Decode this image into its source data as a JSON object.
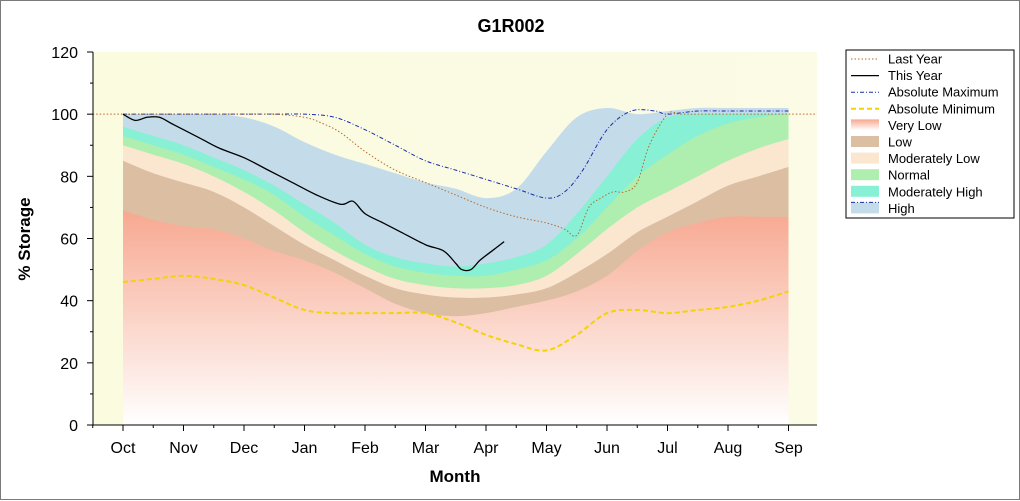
{
  "chart_data": {
    "type": "area",
    "title": "G1R002",
    "xlabel": "Month",
    "ylabel": "% Storage",
    "ylim": [
      0,
      120
    ],
    "yticks": [
      0,
      20,
      40,
      60,
      80,
      100,
      120
    ],
    "xlim": [
      0,
      11.5
    ],
    "categories": [
      "Oct",
      "Nov",
      "Dec",
      "Jan",
      "Feb",
      "Mar",
      "Apr",
      "May",
      "Jun",
      "Jul",
      "Aug",
      "Sep"
    ],
    "grid": false,
    "legend_position": "right",
    "band_x": [
      0,
      0.5,
      1,
      1.5,
      2,
      2.5,
      3,
      3.5,
      4,
      4.5,
      5,
      5.5,
      6,
      6.5,
      7,
      7.5,
      8,
      8.5,
      9,
      9.5,
      10,
      10.5,
      11
    ],
    "bands": [
      {
        "name": "Very Low",
        "color": "#f7a890",
        "upper": [
          69,
          66,
          64,
          63,
          60,
          56,
          53,
          49,
          44,
          39,
          36,
          35,
          36,
          38,
          40,
          43,
          48,
          56,
          62,
          65,
          67,
          67,
          67
        ]
      },
      {
        "name": "Low",
        "color": "#dcbea3",
        "upper": [
          85,
          81,
          78,
          75,
          70,
          64,
          58,
          53,
          48,
          44,
          42,
          41,
          41,
          42,
          44,
          49,
          55,
          62,
          67,
          72,
          77,
          80,
          83
        ]
      },
      {
        "name": "Moderately Low",
        "color": "#fbe6cf",
        "upper": [
          90,
          87,
          84,
          80,
          75,
          69,
          62,
          56,
          51,
          47,
          45,
          44,
          44,
          45,
          48,
          55,
          63,
          70,
          75,
          80,
          85,
          89,
          92
        ]
      },
      {
        "name": "Normal",
        "color": "#aeeeae",
        "upper": [
          93,
          90,
          87,
          83,
          79,
          74,
          67,
          61,
          55,
          51,
          49,
          48,
          48,
          50,
          53,
          60,
          70,
          80,
          87,
          93,
          97,
          99,
          100
        ]
      },
      {
        "name": "Moderately High",
        "color": "#88f0d4",
        "upper": [
          96,
          93,
          90,
          86,
          82,
          77,
          71,
          65,
          58,
          54,
          52,
          51,
          52,
          54,
          58,
          68,
          80,
          92,
          99,
          100,
          100,
          100,
          100
        ]
      },
      {
        "name": "High",
        "color": "#c4dcea",
        "upper": [
          100,
          100,
          100,
          100,
          99,
          96,
          91,
          87,
          84,
          81,
          78,
          76,
          73,
          76,
          88,
          99,
          102,
          100,
          101,
          102,
          102,
          102,
          102
        ]
      }
    ],
    "series": [
      {
        "name": "Last Year",
        "color": "#b56b2a",
        "style": "dotted",
        "width": 1,
        "x": [
          -0.5,
          0,
          0.5,
          1,
          1.5,
          2,
          2.5,
          3,
          3.3,
          3.6,
          4,
          4.5,
          5,
          5.5,
          6,
          6.5,
          7,
          7.3,
          7.5,
          7.7,
          7.9,
          8.1,
          8.3,
          8.5,
          8.7,
          9,
          9.2,
          9.5,
          10,
          10.5,
          11,
          11.5
        ],
        "y": [
          100,
          100,
          100,
          100,
          100,
          100,
          100,
          99,
          97,
          94,
          88,
          82,
          78,
          74,
          70,
          67,
          65,
          63,
          61,
          70,
          73,
          75,
          75,
          78,
          90,
          100,
          100,
          100,
          100,
          100,
          100,
          100
        ]
      },
      {
        "name": "This Year",
        "color": "#000000",
        "style": "solid",
        "width": 1.3,
        "x": [
          0,
          0.2,
          0.4,
          0.6,
          0.8,
          1,
          1.3,
          1.6,
          2,
          2.4,
          2.8,
          3.2,
          3.6,
          3.8,
          4,
          4.3,
          4.6,
          5,
          5.3,
          5.5,
          5.6,
          5.75,
          5.9,
          6.1,
          6.3
        ],
        "y": [
          100,
          98,
          99,
          99,
          97,
          95,
          92,
          89,
          86,
          82,
          78,
          74,
          71,
          72,
          68,
          65,
          62,
          58,
          56,
          52,
          50,
          50,
          53,
          56,
          59
        ]
      },
      {
        "name": "Absolute Maximum",
        "color": "#1a2ea8",
        "style": "dashdot",
        "width": 1,
        "x": [
          0,
          0.5,
          1,
          1.5,
          2,
          2.5,
          3,
          3.5,
          4,
          4.5,
          5,
          5.5,
          6,
          6.5,
          7,
          7.3,
          7.6,
          8,
          8.4,
          8.8,
          9,
          9.5,
          10,
          10.5,
          11
        ],
        "y": [
          100,
          100,
          100,
          100,
          100,
          100,
          100,
          99,
          95,
          90,
          85,
          82,
          79,
          76,
          73,
          75,
          82,
          95,
          101,
          101,
          100,
          101,
          101,
          101,
          101
        ]
      },
      {
        "name": "Absolute Minimum",
        "color": "#f2d400",
        "style": "dashed",
        "width": 2,
        "x": [
          0,
          0.5,
          1,
          1.5,
          2,
          2.5,
          3,
          3.5,
          4,
          4.5,
          5,
          5.5,
          6,
          6.5,
          7,
          7.5,
          8,
          8.5,
          9,
          9.5,
          10,
          10.5,
          11
        ],
        "y": [
          46,
          47,
          48,
          47,
          45,
          41,
          37,
          36,
          36,
          36,
          36,
          33,
          29,
          26,
          24,
          29,
          36,
          37,
          36,
          37,
          38,
          40,
          43
        ]
      }
    ],
    "legend": [
      "Last Year",
      "This Year",
      "Absolute Maximum",
      "Absolute Minimum",
      "Very Low",
      "Low",
      "Moderately Low",
      "Normal",
      "Moderately High",
      "High"
    ]
  },
  "colors": {
    "plot_background": "#fbfbe0",
    "very_low_gradient_bottom": "#ffffff"
  }
}
